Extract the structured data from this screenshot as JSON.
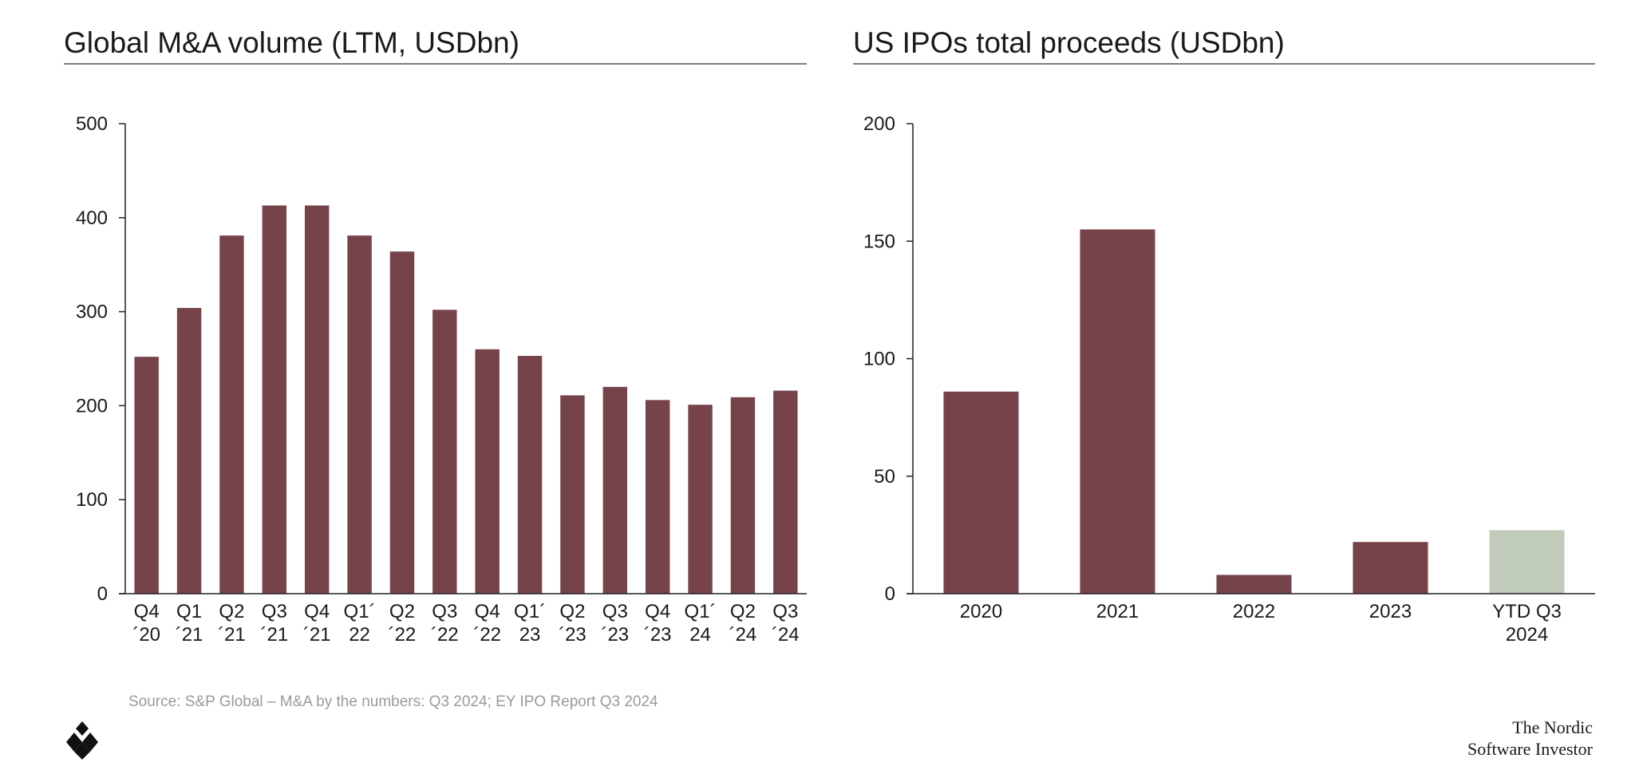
{
  "chart_data": [
    {
      "type": "bar",
      "title": "Global M&A volume (LTM, USDbn)",
      "categories": [
        [
          "Q4",
          "´20"
        ],
        [
          "Q1",
          "´21"
        ],
        [
          "Q2",
          "´21"
        ],
        [
          "Q3",
          "´21"
        ],
        [
          "Q4",
          "´21"
        ],
        [
          "Q1´",
          "22"
        ],
        [
          "Q2",
          "´22"
        ],
        [
          "Q3",
          "´22"
        ],
        [
          "Q4",
          "´22"
        ],
        [
          "Q1´",
          "23"
        ],
        [
          "Q2",
          "´23"
        ],
        [
          "Q3",
          "´23"
        ],
        [
          "Q4",
          "´23"
        ],
        [
          "Q1´",
          "24"
        ],
        [
          "Q2",
          "´24"
        ],
        [
          "Q3",
          "´24"
        ]
      ],
      "values": [
        252,
        304,
        381,
        413,
        413,
        381,
        364,
        302,
        260,
        253,
        211,
        220,
        206,
        201,
        209,
        216
      ],
      "ylim": [
        0,
        500
      ],
      "yticks": [
        0,
        100,
        200,
        300,
        400,
        500
      ],
      "grid": false,
      "colors": [
        "#76434b"
      ]
    },
    {
      "type": "bar",
      "title": "US IPOs total proceeds (USDbn)",
      "categories": [
        [
          "2020"
        ],
        [
          "2021"
        ],
        [
          "2022"
        ],
        [
          "2023"
        ],
        [
          "YTD Q3",
          "2024"
        ]
      ],
      "values": [
        86,
        155,
        8,
        22,
        27
      ],
      "ylim": [
        0,
        200
      ],
      "yticks": [
        0,
        50,
        100,
        150,
        200
      ],
      "grid": false,
      "colors": [
        "#76434b",
        "#76434b",
        "#76434b",
        "#76434b",
        "#c0cbb9"
      ]
    }
  ],
  "footer": {
    "source": "Source: S&P Global – M&A by the numbers: Q3 2024; EY IPO Report Q3 2024",
    "brand_line1": "The Nordic",
    "brand_line2": "Software Investor",
    "logo": "diamond-logo-icon"
  }
}
